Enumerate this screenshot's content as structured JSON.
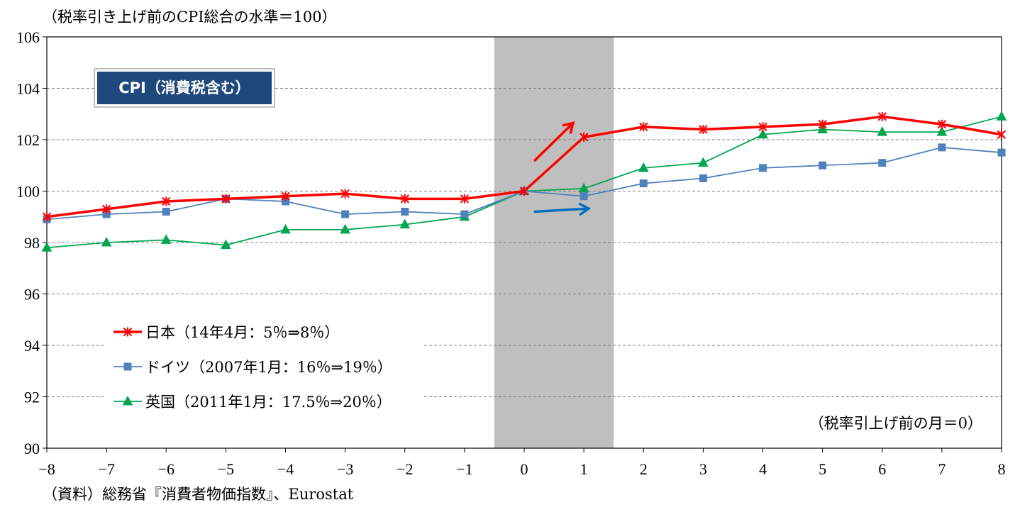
{
  "chart_data": {
    "type": "line",
    "title": "",
    "ylabel": "（税率引き上げ前のCPI総合の水準＝100）",
    "xlabel": "（税率引上げ前の月＝0）",
    "badge": "CPI（消費税含む）",
    "source": "（資料）総務省『消費者物価指数』、Eurostat",
    "x": [
      -8,
      -7,
      -6,
      -5,
      -4,
      -3,
      -2,
      -1,
      0,
      1,
      2,
      3,
      4,
      5,
      6,
      7,
      8
    ],
    "x_tick_labels": [
      "−8",
      "−7",
      "−6",
      "−5",
      "−4",
      "−3",
      "−2",
      "−1",
      "0",
      "1",
      "2",
      "3",
      "4",
      "5",
      "6",
      "7",
      "8"
    ],
    "ylim": [
      90,
      106
    ],
    "y_ticks": [
      90,
      92,
      94,
      96,
      98,
      100,
      102,
      104,
      106
    ],
    "grid": true,
    "shaded_x_range": [
      -0.5,
      1.5
    ],
    "legend_position": "bottom-left",
    "series": [
      {
        "name": "日本（14年4月：5％⇒8％）",
        "color": "#ff0000",
        "marker": "asterisk",
        "values": [
          99.0,
          99.3,
          99.6,
          99.7,
          99.8,
          99.9,
          99.7,
          99.7,
          100.0,
          102.1,
          102.5,
          102.4,
          102.5,
          102.6,
          102.9,
          102.6,
          102.2
        ]
      },
      {
        "name": "ドイツ（2007年1月：16％⇒19％）",
        "color": "#4f81bd",
        "marker": "square",
        "values": [
          98.9,
          99.1,
          99.2,
          99.7,
          99.6,
          99.1,
          99.2,
          99.1,
          100.0,
          99.8,
          100.3,
          100.5,
          100.9,
          101.0,
          101.1,
          101.7,
          101.5
        ]
      },
      {
        "name": "英国（2011年1月：17.5％⇒20％）",
        "color": "#00a550",
        "marker": "triangle",
        "values": [
          97.8,
          98.0,
          98.1,
          97.9,
          98.5,
          98.5,
          98.7,
          99.0,
          100.0,
          100.1,
          100.9,
          101.1,
          102.2,
          102.4,
          102.3,
          102.3,
          102.9
        ]
      }
    ],
    "annotations": [
      {
        "type": "arrow",
        "color": "#ff0000",
        "from": [
          0.18,
          101.2
        ],
        "to": [
          0.82,
          102.65
        ]
      },
      {
        "type": "arrow",
        "color": "#0070c0",
        "from": [
          0.18,
          99.2
        ],
        "to": [
          1.08,
          99.32
        ]
      }
    ]
  }
}
